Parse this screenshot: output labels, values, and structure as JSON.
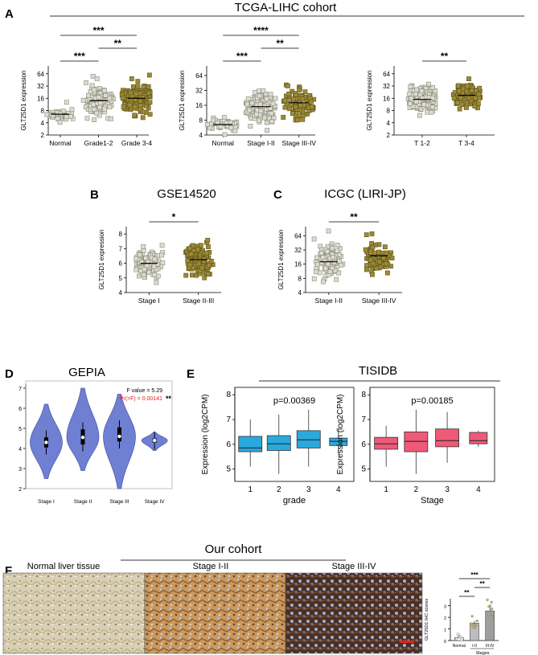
{
  "colors": {
    "normal": "#c9c9c9",
    "normalStroke": "#6e6e6e",
    "olive": "#9c8b35",
    "oliveStroke": "#5d521a",
    "light": "#dcdcd0",
    "lightStroke": "#8a8a7a",
    "violin": "#6f7fd2",
    "violinStroke": "#4a56a8",
    "blue": "#2aa9dc",
    "pink": "#ef5a79",
    "ihcBar": "#9e9e9e",
    "ihcStroke": "#444444",
    "red": "#e0251b"
  },
  "panels": {
    "A": "A",
    "B": "B",
    "C": "C",
    "D": "D",
    "E": "E",
    "F": "F"
  },
  "tcga_title": "TCGA-LIHC cohort",
  "gse_title": "GSE14520",
  "icgc_title": "ICGC (LIRI-JP)",
  "gepia_title": "GEPIA",
  "tisidb_title": "TISIDB",
  "cohort_title": "Our cohort",
  "ihc_labels": [
    "Normal liver tissue",
    "Stage I-II",
    "Stage III-IV"
  ],
  "gepia_stats": {
    "f_value": "F value = 5.29",
    "pr": "Pr(>F) = 0.00141",
    "stars": "**"
  },
  "chart_data": [
    {
      "id": "A1",
      "type": "scatter",
      "ylabel": "GLT25D1 expression",
      "scale": "log2",
      "yticks": [
        "2",
        "4",
        "8",
        "16",
        "32",
        "64"
      ],
      "yrange": [
        2,
        100
      ],
      "categories": [
        "Normal",
        "Grade1-2",
        "Grade 3-4"
      ],
      "centers": [
        6.5,
        14,
        16
      ],
      "sd": [
        0.25,
        0.6,
        0.6
      ],
      "n": [
        35,
        130,
        150
      ],
      "sig": [
        {
          "from": 0,
          "to": 1,
          "label": "***",
          "level": 1
        },
        {
          "from": 1,
          "to": 2,
          "label": "**",
          "level": 2
        },
        {
          "from": 0,
          "to": 2,
          "label": "***",
          "level": 3
        }
      ]
    },
    {
      "id": "A2",
      "type": "scatter",
      "ylabel": "GLT25D1 expression",
      "scale": "log2",
      "yticks": [
        "4",
        "8",
        "16",
        "32",
        "64"
      ],
      "yrange": [
        4,
        100
      ],
      "categories": [
        "Normal",
        "Stage I-II",
        "Stage III-IV"
      ],
      "centers": [
        6.5,
        15,
        18
      ],
      "sd": [
        0.25,
        0.5,
        0.55
      ],
      "n": [
        35,
        130,
        90
      ],
      "sig": [
        {
          "from": 0,
          "to": 1,
          "label": "***",
          "level": 1
        },
        {
          "from": 1,
          "to": 2,
          "label": "**",
          "level": 2
        },
        {
          "from": 0,
          "to": 2,
          "label": "****",
          "level": 3
        }
      ]
    },
    {
      "id": "A3",
      "type": "scatter",
      "ylabel": "GLT25D1 expression",
      "scale": "log2",
      "yticks": [
        "2",
        "4",
        "8",
        "16",
        "32",
        "64"
      ],
      "yrange": [
        2,
        100
      ],
      "categories": [
        "T 1-2",
        "T 3-4"
      ],
      "centers": [
        15,
        19
      ],
      "sd": [
        0.5,
        0.5
      ],
      "n": [
        170,
        110
      ],
      "sig": [
        {
          "from": 0,
          "to": 1,
          "label": "**",
          "level": 1
        }
      ]
    },
    {
      "id": "B",
      "type": "scatter",
      "ylabel": "GLT25D1 expression",
      "scale": "linear",
      "yticks": [
        "4",
        "5",
        "6",
        "7",
        "8"
      ],
      "yrange": [
        4,
        8.5
      ],
      "categories": [
        "Stage I",
        "Stage II-III"
      ],
      "centers": [
        6.0,
        6.25
      ],
      "sd": [
        0.45,
        0.5
      ],
      "n": [
        90,
        160
      ],
      "sig": [
        {
          "from": 0,
          "to": 1,
          "label": "*",
          "level": 1
        }
      ]
    },
    {
      "id": "C",
      "type": "scatter",
      "ylabel": "GLT25D1 expression",
      "scale": "log2",
      "yticks": [
        "4",
        "8",
        "16",
        "32",
        "64"
      ],
      "yrange": [
        4,
        100
      ],
      "categories": [
        "Stage I-II",
        "Stage III-IV"
      ],
      "centers": [
        18,
        24
      ],
      "sd": [
        0.6,
        0.55
      ],
      "n": [
        130,
        90
      ],
      "sig": [
        {
          "from": 0,
          "to": 1,
          "label": "**",
          "level": 1
        }
      ]
    },
    {
      "id": "D",
      "type": "violin",
      "yticks": [
        "2",
        "3",
        "4",
        "5",
        "6",
        "7"
      ],
      "yrange": [
        2,
        7.2
      ],
      "categories": [
        "Stage I",
        "Stage II",
        "Stage III",
        "Stage IV"
      ],
      "medians": [
        4.3,
        4.55,
        4.6,
        4.4
      ],
      "q1": [
        4.05,
        4.2,
        4.35,
        4.3
      ],
      "q3": [
        4.55,
        4.95,
        5.05,
        4.5
      ],
      "min": [
        2.5,
        2.9,
        2.0,
        3.9
      ],
      "max": [
        6.2,
        7.0,
        6.7,
        4.8
      ]
    },
    {
      "id": "E1",
      "type": "box",
      "ylabel": "Expression (log2CPM)",
      "xlabel": "grade",
      "pvalue": "p=0.00369",
      "yticks": [
        "5",
        "6",
        "7",
        "8"
      ],
      "yrange": [
        4.5,
        8.3
      ],
      "categories": [
        "1",
        "2",
        "3",
        "4"
      ],
      "q1": [
        5.7,
        5.75,
        5.85,
        5.95
      ],
      "median": [
        5.85,
        6.02,
        6.18,
        6.12
      ],
      "q3": [
        6.32,
        6.35,
        6.55,
        6.25
      ],
      "wlow": [
        5.1,
        4.8,
        5.1,
        5.6
      ],
      "whigh": [
        7.0,
        7.2,
        7.4,
        6.6
      ]
    },
    {
      "id": "E2",
      "type": "box",
      "ylabel": "Expression (log2CPM)",
      "xlabel": "Stage",
      "pvalue": "p=0.00185",
      "yticks": [
        "5",
        "6",
        "7",
        "8"
      ],
      "yrange": [
        4.5,
        8.3
      ],
      "categories": [
        "1",
        "2",
        "3",
        "4"
      ],
      "q1": [
        5.8,
        5.7,
        5.9,
        6.02
      ],
      "median": [
        6.02,
        6.12,
        6.15,
        6.15
      ],
      "q3": [
        6.28,
        6.5,
        6.62,
        6.48
      ],
      "wlow": [
        5.1,
        4.8,
        5.25,
        5.9
      ],
      "whigh": [
        6.75,
        7.4,
        7.3,
        6.55
      ]
    },
    {
      "id": "F",
      "type": "bar",
      "ylabel": "GLT25D1 IHC scores",
      "xlabel": "Stages",
      "yticks": [
        "0",
        "1",
        "2",
        "3"
      ],
      "yrange": [
        0,
        3.6
      ],
      "categories": [
        "Normal",
        "I-II",
        "III-IV"
      ],
      "values": [
        0.25,
        1.5,
        2.55
      ],
      "err": [
        0.12,
        0.2,
        0.3
      ],
      "sig": [
        {
          "from": 0,
          "to": 1,
          "label": "**",
          "level": 1
        },
        {
          "from": 1,
          "to": 2,
          "label": "**",
          "level": 2
        },
        {
          "from": 0,
          "to": 2,
          "label": "***",
          "level": 3
        }
      ]
    }
  ]
}
